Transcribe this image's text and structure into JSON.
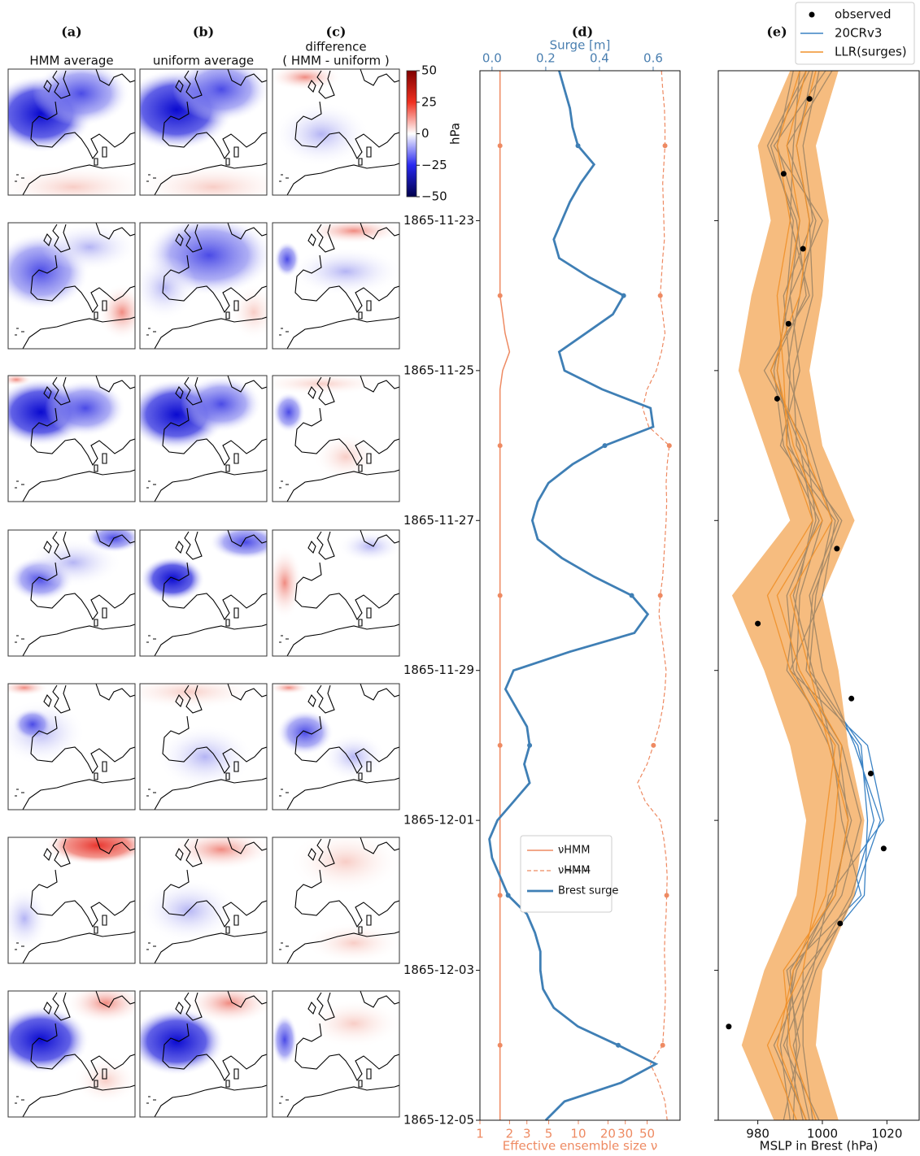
{
  "chart_data": [
    {
      "type": "map_grid",
      "panels": [
        {
          "label": "(a)",
          "title_lines": [
            "HMM average"
          ]
        },
        {
          "label": "(b)",
          "title_lines": [
            "uniform average"
          ]
        },
        {
          "label": "(c)",
          "title_lines": [
            "difference",
            "( HMM - uniform )"
          ]
        }
      ],
      "colorbar": {
        "label": "hPa",
        "lim": [
          -50,
          50
        ],
        "ticks": [
          50,
          25,
          0,
          {
            "value": -25,
            "label": "−25"
          },
          {
            "value": -50,
            "label": "−50"
          }
        ]
      }
    },
    {
      "type": "line",
      "label": "(d)",
      "ylim": [
        "1865-11-21",
        "1865-12-05"
      ],
      "yticks": [
        "1865-11-23",
        "1865-11-25",
        "1865-11-27",
        "1865-11-29",
        "1865-12-01",
        "1865-12-03",
        "1865-12-05"
      ],
      "xlabel": "Effective ensemble size ν",
      "xlog": true,
      "xlim": [
        1,
        108
      ],
      "xticks": [
        1,
        2,
        3,
        5,
        10,
        20,
        30,
        50
      ],
      "xcolor": "#ee8a62",
      "x2label": "Surge [m]",
      "x2lim": [
        -0.045,
        0.7
      ],
      "x2ticks": [
        {
          "value": 0,
          "label": "0.0"
        },
        0.2,
        0.4,
        0.6
      ],
      "x2color": "#4a7fb0",
      "t": [
        "1865-11-21T00:00",
        "1865-11-21T06:00",
        "1865-11-21T12:00",
        "1865-11-21T18:00",
        "1865-11-22T00:00",
        "1865-11-22T06:00",
        "1865-11-22T12:00",
        "1865-11-22T18:00",
        "1865-11-23T00:00",
        "1865-11-23T06:00",
        "1865-11-23T12:00",
        "1865-11-23T18:00",
        "1865-11-24T00:00",
        "1865-11-24T06:00",
        "1865-11-24T12:00",
        "1865-11-24T18:00",
        "1865-11-25T00:00",
        "1865-11-25T06:00",
        "1865-11-25T12:00",
        "1865-11-25T18:00",
        "1865-11-26T00:00",
        "1865-11-26T06:00",
        "1865-11-26T12:00",
        "1865-11-26T18:00",
        "1865-11-27T00:00",
        "1865-11-27T06:00",
        "1865-11-27T12:00",
        "1865-11-27T18:00",
        "1865-11-28T00:00",
        "1865-11-28T06:00",
        "1865-11-28T12:00",
        "1865-11-28T18:00",
        "1865-11-29T00:00",
        "1865-11-29T06:00",
        "1865-11-29T12:00",
        "1865-11-29T18:00",
        "1865-11-30T00:00",
        "1865-11-30T06:00",
        "1865-11-30T12:00",
        "1865-11-30T18:00",
        "1865-12-01T00:00",
        "1865-12-01T06:00",
        "1865-12-01T12:00",
        "1865-12-01T18:00",
        "1865-12-02T00:00",
        "1865-12-02T06:00",
        "1865-12-02T12:00",
        "1865-12-02T18:00",
        "1865-12-03T00:00",
        "1865-12-03T06:00",
        "1865-12-03T12:00",
        "1865-12-03T18:00",
        "1865-12-04T00:00",
        "1865-12-04T06:00",
        "1865-12-04T12:00",
        "1865-12-04T18:00",
        "1865-12-05T00:00"
      ],
      "series": [
        {
          "name": "νHMM",
          "color": "#ee8a62",
          "axis": "x",
          "dash": false,
          "width": 1.5,
          "values": [
            1.6,
            1.6,
            1.6,
            1.6,
            1.6,
            1.6,
            1.6,
            1.6,
            1.6,
            1.6,
            1.6,
            1.6,
            1.6,
            1.7,
            1.8,
            2.0,
            1.7,
            1.6,
            1.6,
            1.6,
            1.6,
            1.6,
            1.6,
            1.6,
            1.6,
            1.6,
            1.6,
            1.6,
            1.6,
            1.6,
            1.6,
            1.6,
            1.6,
            1.6,
            1.6,
            1.6,
            1.6,
            1.6,
            1.6,
            1.6,
            1.6,
            1.6,
            1.6,
            1.6,
            1.6,
            1.6,
            1.6,
            1.6,
            1.6,
            1.6,
            1.6,
            1.6,
            1.6,
            1.6,
            1.6,
            1.6,
            1.6
          ]
        },
        {
          "name": "νH̶M̶M̶",
          "color": "#ee8a62",
          "axis": "x",
          "dash": true,
          "width": 1.2,
          "values": [
            70,
            72,
            75,
            76,
            76,
            74,
            72,
            73,
            74,
            75,
            72,
            70,
            68,
            72,
            76,
            70,
            62,
            50,
            45,
            52,
            84,
            80,
            78,
            79,
            78,
            76,
            74,
            72,
            68,
            66,
            70,
            74,
            78,
            76,
            72,
            66,
            58,
            50,
            40,
            48,
            68,
            74,
            78,
            80,
            79,
            78,
            76,
            75,
            76,
            77,
            76,
            74,
            72,
            54,
            66,
            76,
            80
          ]
        },
        {
          "name": "Brest surge",
          "color": "#3f7fb5",
          "axis": "x2",
          "dash": false,
          "width": 2.8,
          "values": [
            0.25,
            0.27,
            0.29,
            0.3,
            0.32,
            0.38,
            0.33,
            0.29,
            0.26,
            0.23,
            0.25,
            0.36,
            0.49,
            0.45,
            0.35,
            0.25,
            0.27,
            0.41,
            0.59,
            0.6,
            0.42,
            0.3,
            0.21,
            0.17,
            0.15,
            0.17,
            0.26,
            0.38,
            0.52,
            0.58,
            0.53,
            0.29,
            0.08,
            0.05,
            0.09,
            0.13,
            0.14,
            0.12,
            0.14,
            0.08,
            0.02,
            -0.01,
            0.0,
            0.03,
            0.06,
            0.13,
            0.16,
            0.18,
            0.18,
            0.19,
            0.23,
            0.32,
            0.47,
            0.61,
            0.48,
            0.27,
            0.2
          ]
        }
      ]
    },
    {
      "type": "ensemble",
      "label": "(e)",
      "xlabel": "MSLP in Brest (hPa)",
      "xlim": [
        967.75,
        1030
      ],
      "xticks": [
        980,
        1000,
        1020
      ],
      "times": [
        "1865-11-21",
        "1865-11-22",
        "1865-11-23",
        "1865-11-24",
        "1865-11-25",
        "1865-11-26",
        "1865-11-27",
        "1865-11-28",
        "1865-11-29",
        "1865-11-30",
        "1865-12-01",
        "1865-12-02",
        "1865-12-03",
        "1865-12-04",
        "1865-12-05"
      ],
      "series": [
        {
          "name": "observed",
          "color": "#000000",
          "times": [
            "1865-11-21T09:00",
            "1865-11-22T09:00",
            "1865-11-23T09:00",
            "1865-11-24T09:00",
            "1865-11-25T09:00",
            "1865-11-27T09:00",
            "1865-11-28T09:00",
            "1865-11-29T09:00",
            "1865-11-30T09:00",
            "1865-12-01T09:00",
            "1865-12-02T09:00",
            "1865-12-03T18:00"
          ],
          "values": [
            996,
            988,
            994,
            989.5,
            986,
            1004.5,
            980,
            1009,
            1015,
            1019,
            1005.5,
            971
          ]
        },
        {
          "name": "20CRv3",
          "color": "#3a82c4",
          "members": [
            [
              1001,
              985,
              1000,
              990,
              993,
              987,
              1004,
              1000,
              990,
              1014,
              1019,
              1002,
              997,
              988,
              999
            ],
            [
              993,
              991,
              990,
              996,
              982,
              995,
              998,
              991,
              997,
              1003,
              1006,
              1012,
              989,
              993,
              988
            ],
            [
              999,
              994,
              997,
              988,
              990,
              989,
              1006,
              997,
              995,
              1011,
              1016,
              1009,
              996,
              985,
              995
            ],
            [
              995,
              983,
              992,
              995,
              984,
              993,
              997,
              992,
              989,
              1005,
              1008,
              1004,
              990,
              992,
              991
            ],
            [
              1003,
              989,
              998,
              993,
              989,
              996,
              1003,
              998,
              996,
              1012,
              1014,
              1013,
              994,
              994,
              997
            ],
            [
              991,
              986,
              993,
              990,
              985,
              988,
              999,
              989,
              991,
              1002,
              1009,
              1003,
              992,
              987,
              990
            ],
            [
              997,
              992,
              996,
              997,
              991,
              992,
              1005,
              996,
              1000,
              1010,
              1018,
              1010,
              998,
              991,
              996
            ],
            [
              996,
              984,
              991,
              989,
              986,
              990,
              1000,
              993,
              992,
              1006,
              1012,
              1006,
              991,
              989,
              994
            ]
          ]
        },
        {
          "name": "LLR(surges)",
          "color": "#f0902a",
          "members": [
            [
              995,
              989,
              993,
              989,
              986,
              991,
              1000,
              986,
              993,
              1006,
              1004,
              1001,
              991,
              986,
              995
            ],
            [
              998,
              992,
              996,
              993,
              984,
              994,
              1003,
              990,
              996,
              1002,
              1008,
              1004,
              988,
              990,
              998
            ],
            [
              993,
              986,
              990,
              986,
              988,
              989,
              997,
              983,
              990,
              1004,
              1001,
              998,
              994,
              983,
              992
            ]
          ],
          "lower": [
            990,
            980,
            984,
            978,
            974,
            982,
            990,
            972,
            982,
            990,
            995,
            992,
            982,
            975,
            985
          ],
          "upper": [
            1005,
            998,
            1002,
            1000,
            996,
            1000,
            1010,
            1000,
            1005,
            1008,
            1013,
            1010,
            1000,
            998,
            1005
          ]
        }
      ]
    }
  ]
}
